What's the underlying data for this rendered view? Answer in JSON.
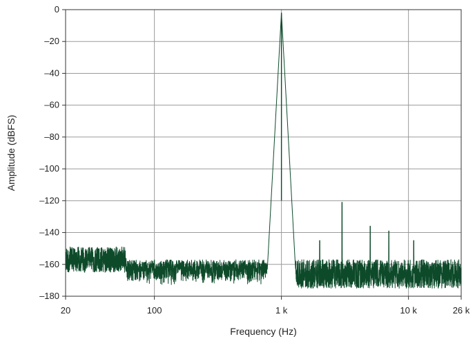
{
  "chart_data": {
    "type": "line",
    "title": "",
    "xlabel": "Frequency (Hz)",
    "ylabel": "Amplitude (dBFS)",
    "x_scale": "log",
    "xlim": [
      20,
      26000
    ],
    "ylim": [
      -180,
      0
    ],
    "grid": true,
    "x_ticks": [
      {
        "value": 20,
        "label": "20"
      },
      {
        "value": 100,
        "label": "100"
      },
      {
        "value": 1000,
        "label": "1 k"
      },
      {
        "value": 10000,
        "label": "10 k"
      },
      {
        "value": 26000,
        "label": "26 k"
      }
    ],
    "x_gridlines": [
      100,
      1000,
      10000
    ],
    "y_ticks": [
      {
        "value": 0,
        "label": "0"
      },
      {
        "value": -20,
        "label": "–20"
      },
      {
        "value": -40,
        "label": "–40"
      },
      {
        "value": -60,
        "label": "–60"
      },
      {
        "value": -80,
        "label": "–80"
      },
      {
        "value": -100,
        "label": "–100"
      },
      {
        "value": -120,
        "label": "–120"
      },
      {
        "value": -140,
        "label": "–140"
      },
      {
        "value": -160,
        "label": "–160"
      },
      {
        "value": -180,
        "label": "–180"
      }
    ],
    "series": [
      {
        "color": "#0d4a2a",
        "noise_floor_db": -160,
        "fundamental": {
          "x": 1000,
          "y": -2
        },
        "harmonics": [
          {
            "x": 2000,
            "y": -145
          },
          {
            "x": 3000,
            "y": -121
          },
          {
            "x": 5000,
            "y": -136
          },
          {
            "x": 7000,
            "y": -139
          },
          {
            "x": 11000,
            "y": -145
          }
        ]
      }
    ]
  }
}
